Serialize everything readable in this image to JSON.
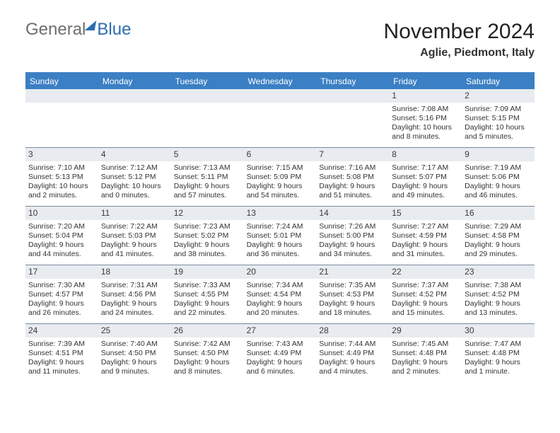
{
  "logo": {
    "part1": "General",
    "part2": "Blue"
  },
  "title": "November 2024",
  "subtitle": "Aglie, Piedmont, Italy",
  "colors": {
    "header_blue": "#3b7fc4",
    "daynum_bg": "#e8ebef",
    "week_border": "#7a8aa0",
    "logo_gray": "#6e6e6e",
    "logo_blue": "#2b6cb0",
    "page_bg": "#ffffff",
    "text": "#333333"
  },
  "typography": {
    "title_fontsize": 30,
    "subtitle_fontsize": 16,
    "dow_fontsize": 12,
    "cell_fontsize": 10.5
  },
  "dow": [
    "Sunday",
    "Monday",
    "Tuesday",
    "Wednesday",
    "Thursday",
    "Friday",
    "Saturday"
  ],
  "weeks": [
    [
      null,
      null,
      null,
      null,
      null,
      {
        "n": "1",
        "sr": "Sunrise: 7:08 AM",
        "ss": "Sunset: 5:16 PM",
        "dl1": "Daylight: 10 hours",
        "dl2": "and 8 minutes."
      },
      {
        "n": "2",
        "sr": "Sunrise: 7:09 AM",
        "ss": "Sunset: 5:15 PM",
        "dl1": "Daylight: 10 hours",
        "dl2": "and 5 minutes."
      }
    ],
    [
      {
        "n": "3",
        "sr": "Sunrise: 7:10 AM",
        "ss": "Sunset: 5:13 PM",
        "dl1": "Daylight: 10 hours",
        "dl2": "and 2 minutes."
      },
      {
        "n": "4",
        "sr": "Sunrise: 7:12 AM",
        "ss": "Sunset: 5:12 PM",
        "dl1": "Daylight: 10 hours",
        "dl2": "and 0 minutes."
      },
      {
        "n": "5",
        "sr": "Sunrise: 7:13 AM",
        "ss": "Sunset: 5:11 PM",
        "dl1": "Daylight: 9 hours",
        "dl2": "and 57 minutes."
      },
      {
        "n": "6",
        "sr": "Sunrise: 7:15 AM",
        "ss": "Sunset: 5:09 PM",
        "dl1": "Daylight: 9 hours",
        "dl2": "and 54 minutes."
      },
      {
        "n": "7",
        "sr": "Sunrise: 7:16 AM",
        "ss": "Sunset: 5:08 PM",
        "dl1": "Daylight: 9 hours",
        "dl2": "and 51 minutes."
      },
      {
        "n": "8",
        "sr": "Sunrise: 7:17 AM",
        "ss": "Sunset: 5:07 PM",
        "dl1": "Daylight: 9 hours",
        "dl2": "and 49 minutes."
      },
      {
        "n": "9",
        "sr": "Sunrise: 7:19 AM",
        "ss": "Sunset: 5:06 PM",
        "dl1": "Daylight: 9 hours",
        "dl2": "and 46 minutes."
      }
    ],
    [
      {
        "n": "10",
        "sr": "Sunrise: 7:20 AM",
        "ss": "Sunset: 5:04 PM",
        "dl1": "Daylight: 9 hours",
        "dl2": "and 44 minutes."
      },
      {
        "n": "11",
        "sr": "Sunrise: 7:22 AM",
        "ss": "Sunset: 5:03 PM",
        "dl1": "Daylight: 9 hours",
        "dl2": "and 41 minutes."
      },
      {
        "n": "12",
        "sr": "Sunrise: 7:23 AM",
        "ss": "Sunset: 5:02 PM",
        "dl1": "Daylight: 9 hours",
        "dl2": "and 38 minutes."
      },
      {
        "n": "13",
        "sr": "Sunrise: 7:24 AM",
        "ss": "Sunset: 5:01 PM",
        "dl1": "Daylight: 9 hours",
        "dl2": "and 36 minutes."
      },
      {
        "n": "14",
        "sr": "Sunrise: 7:26 AM",
        "ss": "Sunset: 5:00 PM",
        "dl1": "Daylight: 9 hours",
        "dl2": "and 34 minutes."
      },
      {
        "n": "15",
        "sr": "Sunrise: 7:27 AM",
        "ss": "Sunset: 4:59 PM",
        "dl1": "Daylight: 9 hours",
        "dl2": "and 31 minutes."
      },
      {
        "n": "16",
        "sr": "Sunrise: 7:29 AM",
        "ss": "Sunset: 4:58 PM",
        "dl1": "Daylight: 9 hours",
        "dl2": "and 29 minutes."
      }
    ],
    [
      {
        "n": "17",
        "sr": "Sunrise: 7:30 AM",
        "ss": "Sunset: 4:57 PM",
        "dl1": "Daylight: 9 hours",
        "dl2": "and 26 minutes."
      },
      {
        "n": "18",
        "sr": "Sunrise: 7:31 AM",
        "ss": "Sunset: 4:56 PM",
        "dl1": "Daylight: 9 hours",
        "dl2": "and 24 minutes."
      },
      {
        "n": "19",
        "sr": "Sunrise: 7:33 AM",
        "ss": "Sunset: 4:55 PM",
        "dl1": "Daylight: 9 hours",
        "dl2": "and 22 minutes."
      },
      {
        "n": "20",
        "sr": "Sunrise: 7:34 AM",
        "ss": "Sunset: 4:54 PM",
        "dl1": "Daylight: 9 hours",
        "dl2": "and 20 minutes."
      },
      {
        "n": "21",
        "sr": "Sunrise: 7:35 AM",
        "ss": "Sunset: 4:53 PM",
        "dl1": "Daylight: 9 hours",
        "dl2": "and 18 minutes."
      },
      {
        "n": "22",
        "sr": "Sunrise: 7:37 AM",
        "ss": "Sunset: 4:52 PM",
        "dl1": "Daylight: 9 hours",
        "dl2": "and 15 minutes."
      },
      {
        "n": "23",
        "sr": "Sunrise: 7:38 AM",
        "ss": "Sunset: 4:52 PM",
        "dl1": "Daylight: 9 hours",
        "dl2": "and 13 minutes."
      }
    ],
    [
      {
        "n": "24",
        "sr": "Sunrise: 7:39 AM",
        "ss": "Sunset: 4:51 PM",
        "dl1": "Daylight: 9 hours",
        "dl2": "and 11 minutes."
      },
      {
        "n": "25",
        "sr": "Sunrise: 7:40 AM",
        "ss": "Sunset: 4:50 PM",
        "dl1": "Daylight: 9 hours",
        "dl2": "and 9 minutes."
      },
      {
        "n": "26",
        "sr": "Sunrise: 7:42 AM",
        "ss": "Sunset: 4:50 PM",
        "dl1": "Daylight: 9 hours",
        "dl2": "and 8 minutes."
      },
      {
        "n": "27",
        "sr": "Sunrise: 7:43 AM",
        "ss": "Sunset: 4:49 PM",
        "dl1": "Daylight: 9 hours",
        "dl2": "and 6 minutes."
      },
      {
        "n": "28",
        "sr": "Sunrise: 7:44 AM",
        "ss": "Sunset: 4:49 PM",
        "dl1": "Daylight: 9 hours",
        "dl2": "and 4 minutes."
      },
      {
        "n": "29",
        "sr": "Sunrise: 7:45 AM",
        "ss": "Sunset: 4:48 PM",
        "dl1": "Daylight: 9 hours",
        "dl2": "and 2 minutes."
      },
      {
        "n": "30",
        "sr": "Sunrise: 7:47 AM",
        "ss": "Sunset: 4:48 PM",
        "dl1": "Daylight: 9 hours",
        "dl2": "and 1 minute."
      }
    ]
  ]
}
